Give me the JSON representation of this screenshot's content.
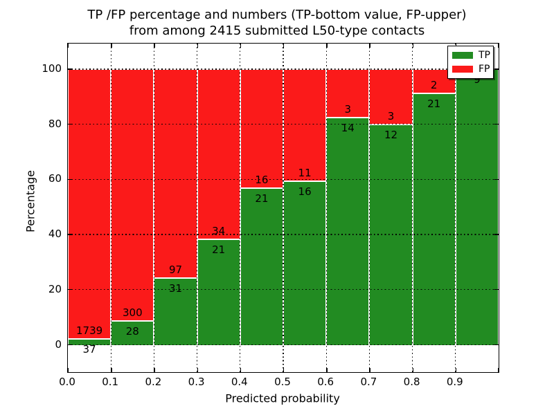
{
  "title": {
    "line1": "TP /FP percentage and numbers (TP-bottom value, FP-upper)",
    "line2": "from among 2415 submitted L50-type contacts"
  },
  "axes": {
    "ylabel": "Percentage",
    "xlabel": "Predicted probability",
    "ytick_labels": [
      "0",
      "20",
      "40",
      "60",
      "80",
      "100"
    ],
    "ytick_values": [
      0,
      20,
      40,
      60,
      80,
      100
    ],
    "xtick_labels": [
      "0.0",
      "0.1",
      "0.2",
      "0.3",
      "0.4",
      "0.5",
      "0.6",
      "0.7",
      "0.8",
      "0.9"
    ],
    "xtick_values": [
      0.0,
      0.1,
      0.2,
      0.3,
      0.4,
      0.5,
      0.6,
      0.7,
      0.8,
      0.9
    ]
  },
  "legend": {
    "position": "upper right",
    "items": [
      {
        "label": "TP",
        "color": "#228b22"
      },
      {
        "label": "FP",
        "color": "#fb1a1a"
      }
    ]
  },
  "colors": {
    "tp": "#228b22",
    "fp": "#fb1a1a",
    "grid": "#000000",
    "background": "#ffffff"
  },
  "chart_data": {
    "type": "bar",
    "stacked": true,
    "normalized_to_percent": true,
    "title": "TP /FP percentage and numbers (TP-bottom value, FP-upper) from among 2415 submitted L50-type contacts",
    "xlabel": "Predicted probability",
    "ylabel": "Percentage",
    "xlim": [
      0.0,
      1.0
    ],
    "ylim": [
      -10,
      109
    ],
    "grid": true,
    "legend_position": "upper right",
    "total_contacts": 2415,
    "bin_edges": [
      0.0,
      0.1,
      0.2,
      0.3,
      0.4,
      0.5,
      0.6,
      0.7,
      0.8,
      0.9,
      1.0
    ],
    "series": [
      {
        "name": "TP",
        "color": "#228b22",
        "counts": [
          37,
          28,
          31,
          21,
          21,
          16,
          14,
          12,
          21,
          9
        ]
      },
      {
        "name": "FP",
        "color": "#fb1a1a",
        "counts": [
          1739,
          300,
          97,
          34,
          16,
          11,
          3,
          3,
          2,
          0
        ]
      }
    ],
    "tp_labels": [
      "37",
      "28",
      "31",
      "21",
      "21",
      "16",
      "14",
      "12",
      "21",
      "9"
    ],
    "fp_labels": [
      "1739",
      "300",
      "97",
      "34",
      "16",
      "11",
      "3",
      "3",
      "2",
      ""
    ]
  }
}
